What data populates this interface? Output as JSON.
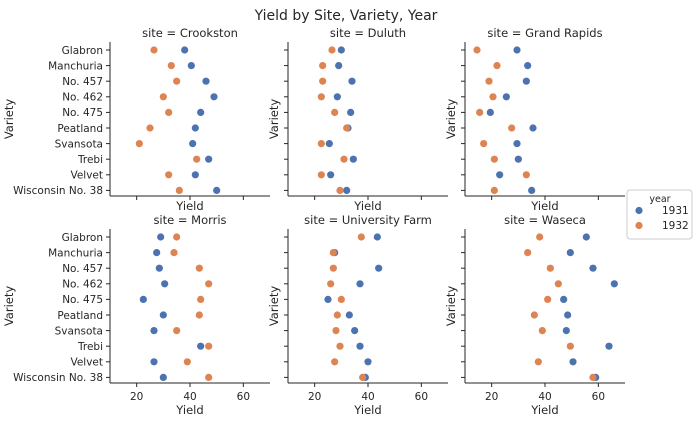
{
  "chart_data": {
    "type": "scatter",
    "title": "Yield by Site, Variety, Year",
    "facet_label_prefix": "site = ",
    "xlabel": "Yield",
    "ylabel": "Variety",
    "xlim": [
      10,
      70
    ],
    "xticks": [
      20,
      40,
      60
    ],
    "categories": [
      "Glabron",
      "Manchuria",
      "No. 457",
      "No. 462",
      "No. 475",
      "Peatland",
      "Svansota",
      "Trebi",
      "Velvet",
      "Wisconsin No. 38"
    ],
    "legend": {
      "title": "year",
      "position": "right",
      "entries": [
        {
          "label": "1931",
          "color": "#4c72b0"
        },
        {
          "label": "1932",
          "color": "#dd8452"
        }
      ]
    },
    "facets": [
      {
        "site": "Crookston",
        "series": [
          {
            "name": "1931",
            "values": [
              38,
              40.5,
              46,
              49,
              44,
              42,
              41,
              47,
              42,
              50
            ]
          },
          {
            "name": "1932",
            "values": [
              26.5,
              33,
              35,
              30,
              32,
              25,
              21,
              42.5,
              32,
              36
            ]
          }
        ]
      },
      {
        "site": "Duluth",
        "series": [
          {
            "name": "1931",
            "values": [
              30,
              29,
              34,
              28.5,
              33.5,
              32.5,
              25.5,
              34.5,
              26,
              32
            ]
          },
          {
            "name": "1932",
            "values": [
              26.5,
              23,
              23,
              22.5,
              27.5,
              32,
              22.5,
              31,
              22.5,
              29.5
            ]
          }
        ]
      },
      {
        "site": "Grand Rapids",
        "series": [
          {
            "name": "1931",
            "values": [
              29.5,
              33.5,
              33,
              25.5,
              19.5,
              35.5,
              29.5,
              30,
              23,
              35
            ]
          },
          {
            "name": "1932",
            "values": [
              14.5,
              22,
              19,
              20.5,
              15.5,
              27.5,
              17,
              21,
              33,
              21
            ]
          }
        ]
      },
      {
        "site": "Morris",
        "series": [
          {
            "name": "1931",
            "values": [
              29,
              27.5,
              28.5,
              30.5,
              22.5,
              30,
              26.5,
              44,
              26.5,
              30
            ]
          },
          {
            "name": "1932",
            "values": [
              35,
              34,
              43.5,
              47,
              44,
              43.5,
              35,
              47,
              39,
              47
            ]
          }
        ]
      },
      {
        "site": "University Farm",
        "series": [
          {
            "name": "1931",
            "values": [
              43.5,
              27.5,
              44,
              37,
              25,
              33,
              35,
              37,
              40,
              39
            ]
          },
          {
            "name": "1932",
            "values": [
              37.5,
              27,
              27,
              26,
              30,
              28.5,
              28,
              29.5,
              27.5,
              38
            ]
          }
        ]
      },
      {
        "site": "Waseca",
        "series": [
          {
            "name": "1931",
            "values": [
              55.5,
              49.5,
              58,
              66,
              47,
              48.5,
              48,
              64,
              50.5,
              59
            ]
          },
          {
            "name": "1932",
            "values": [
              38,
              33.5,
              42,
              45,
              41,
              36,
              39,
              49.5,
              37.5,
              58
            ]
          }
        ]
      }
    ]
  }
}
